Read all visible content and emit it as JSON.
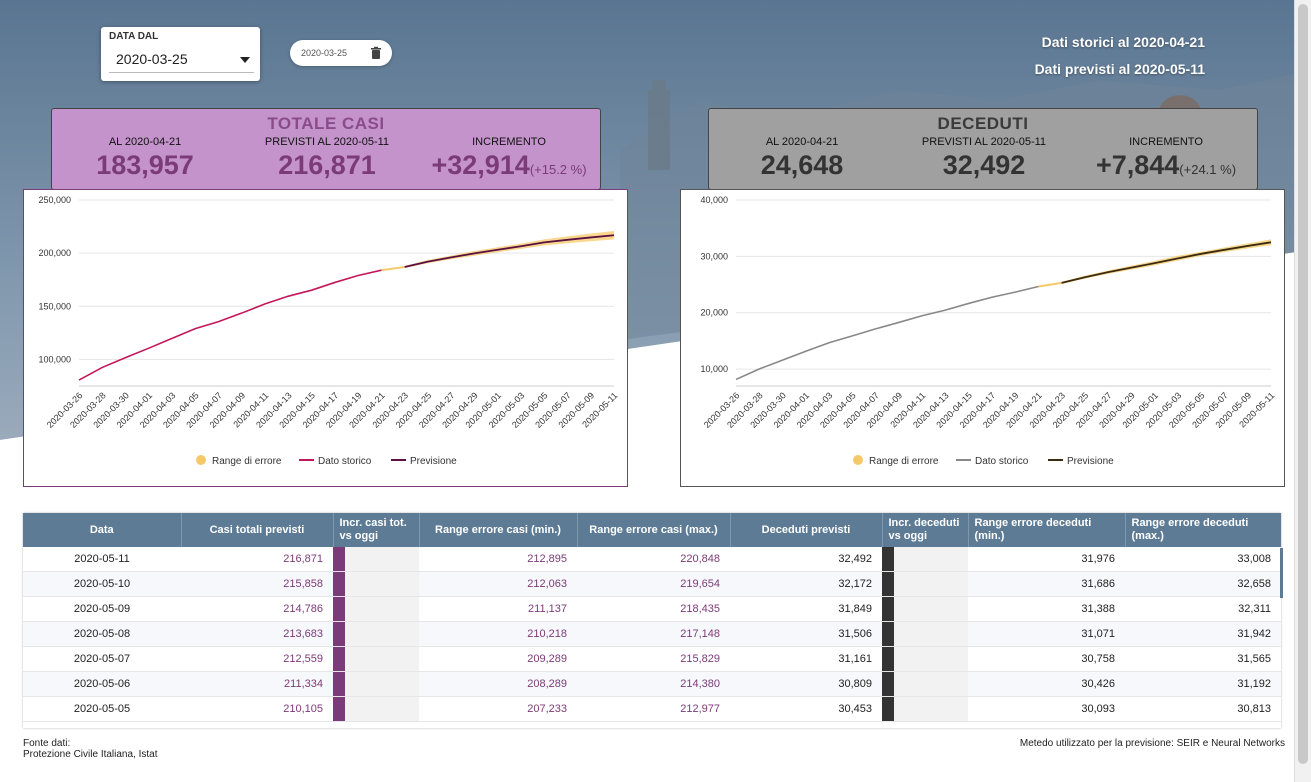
{
  "date_filter": {
    "label": "DATA DAL",
    "value": "2020-03-25"
  },
  "date_chip": {
    "value": "2020-03-25"
  },
  "header": {
    "historical": "Dati storici al 2020-04-21",
    "forecast": "Dati previsti al 2020-05-11"
  },
  "cases_card": {
    "title": "TOTALE CASI",
    "cols": [
      {
        "label": "AL 2020-04-21",
        "value": "183,957"
      },
      {
        "label": "PREVISTI AL 2020-05-11",
        "value": "216,871"
      },
      {
        "label": "INCREMENTO",
        "value": "+32,914",
        "pct": "(+15.2 %)"
      }
    ]
  },
  "deaths_card": {
    "title": "DECEDUTI",
    "cols": [
      {
        "label": "AL 2020-04-21",
        "value": "24,648"
      },
      {
        "label": "PREVISTI AL 2020-05-11",
        "value": "32,492"
      },
      {
        "label": "INCREMENTO",
        "value": "+7,844",
        "pct": "(+24.1 %)"
      }
    ]
  },
  "colors": {
    "cases_card_bg": "#c493cb",
    "cases_title": "#8a4b8a",
    "deaths_card_bg": "#a0a0a0",
    "cases_hist": "#c2185b",
    "forecast_cases": "#5a1040",
    "deaths_hist": "#888888",
    "forecast_deaths": "#3a2a10",
    "error_band": "#f5c96a",
    "header_row": "#5d7b95"
  },
  "chart_data": [
    {
      "type": "line",
      "x": [
        "2020-03-26",
        "2020-03-28",
        "2020-03-30",
        "2020-04-01",
        "2020-04-03",
        "2020-04-05",
        "2020-04-07",
        "2020-04-09",
        "2020-04-11",
        "2020-04-13",
        "2020-04-15",
        "2020-04-17",
        "2020-04-19",
        "2020-04-21",
        "2020-04-23",
        "2020-04-25",
        "2020-04-27",
        "2020-04-29",
        "2020-05-01",
        "2020-05-03",
        "2020-05-05",
        "2020-05-07",
        "2020-05-09",
        "2020-05-11"
      ],
      "ylim": [
        75000,
        250000
      ],
      "yticks": [
        "100,000",
        "150,000",
        "200,000",
        "250,000"
      ],
      "legend": [
        "Range di errore",
        "Dato storico",
        "Previsione"
      ],
      "legend_position": "bottom",
      "series": [
        {
          "name": "Dato storico",
          "x": [
            "2020-03-26",
            "2020-03-28",
            "2020-03-30",
            "2020-04-01",
            "2020-04-03",
            "2020-04-05",
            "2020-04-07",
            "2020-04-09",
            "2020-04-11",
            "2020-04-13",
            "2020-04-15",
            "2020-04-17",
            "2020-04-19",
            "2020-04-21"
          ],
          "values": [
            80589,
            92472,
            101739,
            110574,
            119827,
            128948,
            135586,
            143626,
            152271,
            159516,
            165155,
            172434,
            178972,
            183957
          ]
        },
        {
          "name": "Previsione",
          "x": [
            "2020-04-23",
            "2020-04-25",
            "2020-04-27",
            "2020-04-29",
            "2020-05-01",
            "2020-05-03",
            "2020-05-05",
            "2020-05-07",
            "2020-05-09",
            "2020-05-11"
          ],
          "values": [
            187000,
            192000,
            196000,
            199800,
            203200,
            206500,
            210105,
            212559,
            214786,
            216871
          ]
        },
        {
          "name": "Range di errore",
          "x": [
            "2020-04-23",
            "2020-04-25",
            "2020-04-27",
            "2020-04-29",
            "2020-05-01",
            "2020-05-03",
            "2020-05-05",
            "2020-05-07",
            "2020-05-09",
            "2020-05-11"
          ],
          "low": [
            186000,
            190500,
            194300,
            197600,
            200800,
            204000,
            207233,
            209289,
            211137,
            212895
          ],
          "high": [
            188000,
            193500,
            197700,
            202000,
            205600,
            209000,
            212977,
            215829,
            218435,
            220848
          ]
        }
      ]
    },
    {
      "type": "line",
      "x": [
        "2020-03-26",
        "2020-03-28",
        "2020-03-30",
        "2020-04-01",
        "2020-04-03",
        "2020-04-05",
        "2020-04-07",
        "2020-04-09",
        "2020-04-11",
        "2020-04-13",
        "2020-04-15",
        "2020-04-17",
        "2020-04-19",
        "2020-04-21",
        "2020-04-23",
        "2020-04-25",
        "2020-04-27",
        "2020-04-29",
        "2020-05-01",
        "2020-05-03",
        "2020-05-05",
        "2020-05-07",
        "2020-05-09",
        "2020-05-11"
      ],
      "ylim": [
        7000,
        40000
      ],
      "yticks": [
        "10,000",
        "20,000",
        "30,000",
        "40,000"
      ],
      "legend": [
        "Range di errore",
        "Dato storico",
        "Previsione"
      ],
      "legend_position": "bottom",
      "series": [
        {
          "name": "Dato storico",
          "x": [
            "2020-03-26",
            "2020-03-28",
            "2020-03-30",
            "2020-04-01",
            "2020-04-03",
            "2020-04-05",
            "2020-04-07",
            "2020-04-09",
            "2020-04-11",
            "2020-04-13",
            "2020-04-15",
            "2020-04-17",
            "2020-04-19",
            "2020-04-21"
          ],
          "values": [
            8165,
            10023,
            11591,
            13155,
            14681,
            15887,
            17127,
            18279,
            19468,
            20465,
            21645,
            22745,
            23660,
            24648
          ]
        },
        {
          "name": "Previsione",
          "x": [
            "2020-04-23",
            "2020-04-25",
            "2020-04-27",
            "2020-04-29",
            "2020-05-01",
            "2020-05-03",
            "2020-05-05",
            "2020-05-07",
            "2020-05-09",
            "2020-05-11"
          ],
          "values": [
            25300,
            26300,
            27200,
            28000,
            28800,
            29650,
            30453,
            31161,
            31849,
            32492
          ]
        },
        {
          "name": "Range di errore",
          "x": [
            "2020-04-23",
            "2020-04-25",
            "2020-04-27",
            "2020-04-29",
            "2020-05-01",
            "2020-05-03",
            "2020-05-05",
            "2020-05-07",
            "2020-05-09",
            "2020-05-11"
          ],
          "low": [
            25100,
            26050,
            26900,
            27650,
            28400,
            29250,
            30093,
            30758,
            31388,
            31976
          ],
          "high": [
            25500,
            26550,
            27500,
            28350,
            29200,
            30100,
            30813,
            31565,
            32311,
            33008
          ]
        }
      ]
    }
  ],
  "table": {
    "headers": [
      "Data",
      "Casi totali previsti",
      "Incr. casi tot. vs oggi",
      "Range errore casi (min.)",
      "Range errore casi (max.)",
      "Deceduti previsti",
      "Incr. deceduti vs oggi",
      "Range errore deceduti (min.)",
      "Range errore deceduti (max.)"
    ],
    "rows": [
      {
        "date": "2020-05-11",
        "cases": "216,871",
        "cmin": "212,895",
        "cmax": "220,848",
        "deaths": "32,492",
        "dmin": "31,976",
        "dmax": "33,008"
      },
      {
        "date": "2020-05-10",
        "cases": "215,858",
        "cmin": "212,063",
        "cmax": "219,654",
        "deaths": "32,172",
        "dmin": "31,686",
        "dmax": "32,658"
      },
      {
        "date": "2020-05-09",
        "cases": "214,786",
        "cmin": "211,137",
        "cmax": "218,435",
        "deaths": "31,849",
        "dmin": "31,388",
        "dmax": "32,311"
      },
      {
        "date": "2020-05-08",
        "cases": "213,683",
        "cmin": "210,218",
        "cmax": "217,148",
        "deaths": "31,506",
        "dmin": "31,071",
        "dmax": "31,942"
      },
      {
        "date": "2020-05-07",
        "cases": "212,559",
        "cmin": "209,289",
        "cmax": "215,829",
        "deaths": "31,161",
        "dmin": "30,758",
        "dmax": "31,565"
      },
      {
        "date": "2020-05-06",
        "cases": "211,334",
        "cmin": "208,289",
        "cmax": "214,380",
        "deaths": "30,809",
        "dmin": "30,426",
        "dmax": "31,192"
      },
      {
        "date": "2020-05-05",
        "cases": "210,105",
        "cmin": "207,233",
        "cmax": "212,977",
        "deaths": "30,453",
        "dmin": "30,093",
        "dmax": "30,813"
      }
    ]
  },
  "footer": {
    "source_label": "Fonte dati:",
    "source": "Protezione Civile Italiana, Istat",
    "method": "Metedo utilizzato per la previsione: SEIR e Neural Networks"
  }
}
